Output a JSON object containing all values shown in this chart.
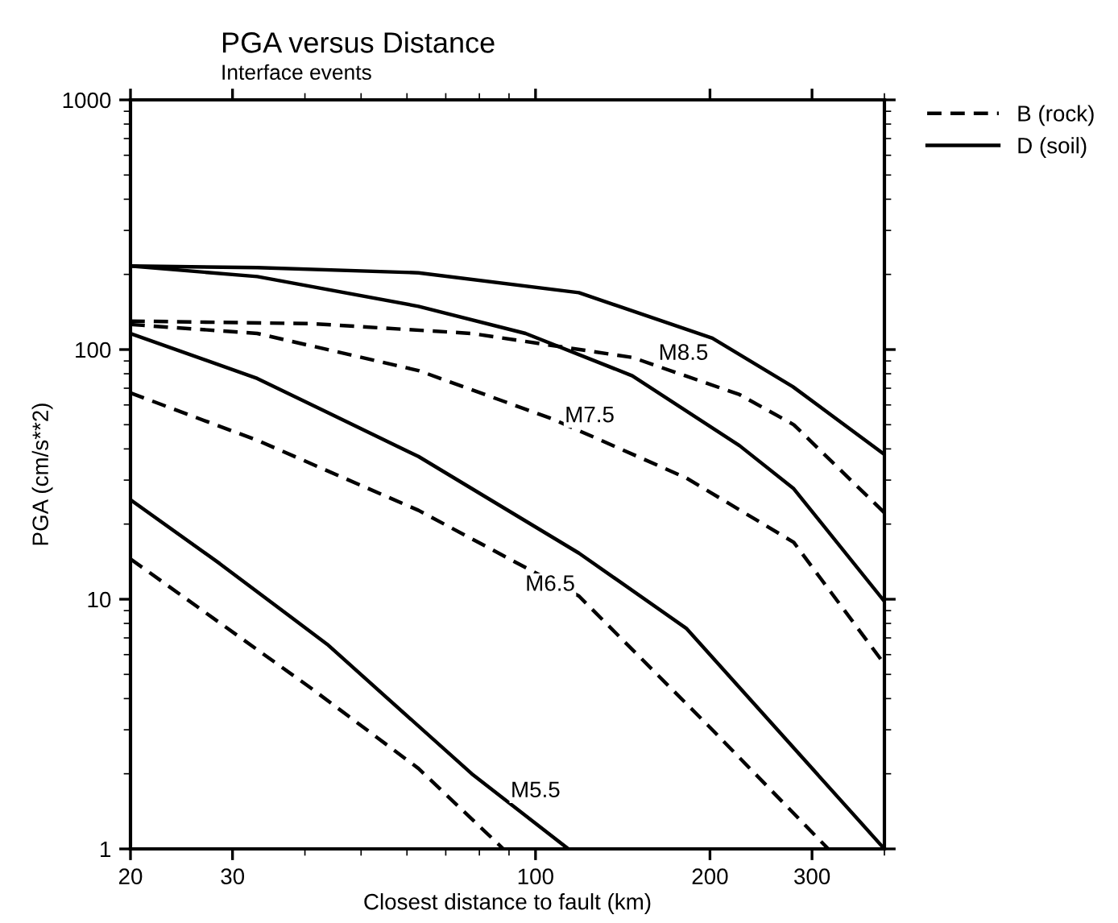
{
  "chart_data": {
    "type": "line",
    "title": "PGA versus Distance",
    "subtitle": "Interface events",
    "xlabel": "Closest distance to fault (km)",
    "ylabel": "PGA (cm/s**2)",
    "log": "xy",
    "xlim": [
      20,
      400
    ],
    "ylim": [
      1,
      1000
    ],
    "xticks": [
      20,
      30,
      100,
      200,
      300
    ],
    "yticks": [
      1,
      10,
      100,
      1000
    ],
    "grid": false,
    "legend": "top right",
    "marker": "none",
    "series": [
      {
        "name": "B (rock)",
        "color": "#000000",
        "line_style": "dashed",
        "x": [
          20,
          41,
          77.6,
          146.9,
          225,
          279,
          400
        ],
        "values": [
          130,
          127,
          116,
          93,
          66,
          50,
          22.2
        ]
      },
      {
        "name": "D (soil)",
        "color": "#000000",
        "line_style": "solid",
        "x": [
          20,
          33.1,
          62.8,
          118.8,
          201.9,
          278,
          400
        ],
        "values": [
          216,
          213,
          203,
          169,
          111,
          71,
          38
        ]
      },
      {
        "color": "#000000",
        "line_style": "solid",
        "x": [
          20,
          33.1,
          62.8,
          96.1,
          146.9,
          225,
          279,
          400
        ],
        "values": [
          216,
          196,
          149,
          116,
          78.5,
          41.2,
          27.7,
          9.8
        ]
      },
      {
        "color": "#000000",
        "line_style": "dashed",
        "x": [
          20,
          33.1,
          62.8,
          106.8,
          182,
          279,
          400
        ],
        "values": [
          126,
          116,
          82.4,
          52.8,
          30.6,
          16.9,
          5.5
        ]
      },
      {
        "color": "#000000",
        "line_style": "solid",
        "x": [
          20,
          33.1,
          62.8,
          118.8,
          182,
          400
        ],
        "values": [
          116,
          76.6,
          37.3,
          15.3,
          7.65,
          1.0
        ]
      },
      {
        "color": "#000000",
        "line_style": "dashed",
        "x": [
          20,
          33.1,
          62.8,
          118.8,
          198,
          320
        ],
        "values": [
          67,
          43.3,
          22.7,
          10.3,
          3.14,
          1.0
        ]
      },
      {
        "color": "#000000",
        "line_style": "solid",
        "x": [
          20,
          28.5,
          43.7,
          77.6,
          113.9
        ],
        "values": [
          25,
          13.9,
          6.6,
          2.0,
          1.0
        ]
      },
      {
        "color": "#000000",
        "line_style": "dashed",
        "x": [
          20,
          41,
          62.8,
          88
        ],
        "values": [
          14.5,
          4.4,
          2.1,
          1.0
        ]
      }
    ],
    "annotations": [
      {
        "text": "M8.5",
        "x": 180,
        "y": 96
      },
      {
        "text": "M7.5",
        "x": 124,
        "y": 54
      },
      {
        "text": "M6.5",
        "x": 106,
        "y": 11.4
      },
      {
        "text": "M5.5",
        "x": 100,
        "y": 1.7
      }
    ]
  }
}
